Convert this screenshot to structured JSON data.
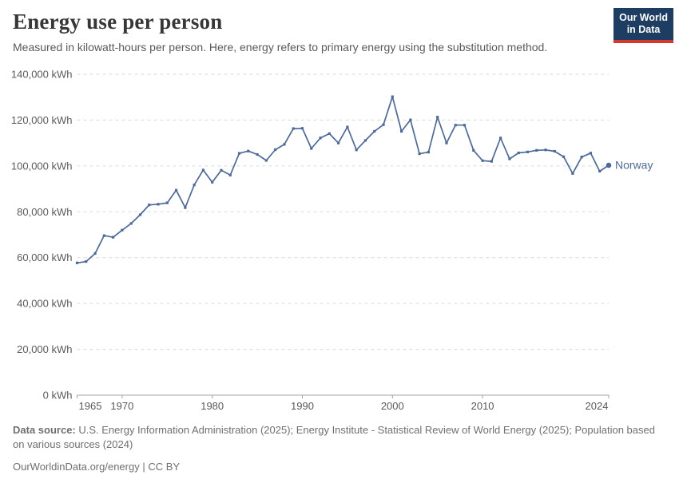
{
  "header": {
    "title": "Energy use per person",
    "subtitle": "Measured in kilowatt-hours per person. Here, energy refers to primary energy using the substitution method.",
    "logo": {
      "line1": "Our World",
      "line2": "in Data",
      "bg_color": "#1d3d63",
      "accent_color": "#d7382d"
    }
  },
  "chart_data": {
    "type": "line",
    "title": "Energy use per person",
    "xlabel": "",
    "ylabel": "kWh",
    "xlim": [
      1965,
      2024
    ],
    "ylim": [
      0,
      140000
    ],
    "grid": "dashed-horizontal",
    "legend_position": "end-of-line-label",
    "x": [
      1965,
      1966,
      1967,
      1968,
      1969,
      1970,
      1971,
      1972,
      1973,
      1974,
      1975,
      1976,
      1977,
      1978,
      1979,
      1980,
      1981,
      1982,
      1983,
      1984,
      1985,
      1986,
      1987,
      1988,
      1989,
      1990,
      1991,
      1992,
      1993,
      1994,
      1995,
      1996,
      1997,
      1998,
      1999,
      2000,
      2001,
      2002,
      2003,
      2004,
      2005,
      2006,
      2007,
      2008,
      2009,
      2010,
      2011,
      2012,
      2013,
      2014,
      2015,
      2016,
      2017,
      2018,
      2019,
      2020,
      2021,
      2022,
      2023,
      2024
    ],
    "series": [
      {
        "name": "Norway",
        "color": "#4C6A9C",
        "values": [
          57700,
          58300,
          61800,
          69600,
          68900,
          72000,
          74900,
          78700,
          83000,
          83300,
          83900,
          89400,
          81800,
          91700,
          98200,
          92900,
          98100,
          96000,
          105500,
          106500,
          105000,
          102400,
          107100,
          109400,
          116300,
          116400,
          107600,
          112200,
          114100,
          110000,
          117000,
          107000,
          111100,
          115100,
          118000,
          130200,
          115100,
          120100,
          105300,
          106000,
          121300,
          110000,
          117800,
          117800,
          106800,
          102300,
          102000,
          112200,
          103100,
          105700,
          106100,
          106800,
          107000,
          106400,
          104000,
          96700,
          103900,
          105600,
          97700,
          100300
        ]
      }
    ],
    "yticks": [
      {
        "value": 0,
        "label": "0 kWh"
      },
      {
        "value": 20000,
        "label": "20,000 kWh"
      },
      {
        "value": 40000,
        "label": "40,000 kWh"
      },
      {
        "value": 60000,
        "label": "60,000 kWh"
      },
      {
        "value": 80000,
        "label": "80,000 kWh"
      },
      {
        "value": 100000,
        "label": "100,000 kWh"
      },
      {
        "value": 120000,
        "label": "120,000 kWh"
      },
      {
        "value": 140000,
        "label": "140,000 kWh"
      }
    ],
    "xticks": [
      {
        "value": 1965,
        "label": "1965"
      },
      {
        "value": 1970,
        "label": "1970"
      },
      {
        "value": 1980,
        "label": "1980"
      },
      {
        "value": 1990,
        "label": "1990"
      },
      {
        "value": 2000,
        "label": "2000"
      },
      {
        "value": 2010,
        "label": "2010"
      },
      {
        "value": 2024,
        "label": "2024"
      }
    ],
    "colors": {
      "gridline": "#d9d9d9",
      "axis": "#a3a3a3",
      "tick_label": "#5a5a5a"
    }
  },
  "footer": {
    "data_source_label": "Data source:",
    "data_source_text": " U.S. Energy Information Administration (2025); Energy Institute - Statistical Review of World Energy (2025); Population based on various sources (2024)",
    "license_line": "OurWorldinData.org/energy | CC BY"
  }
}
